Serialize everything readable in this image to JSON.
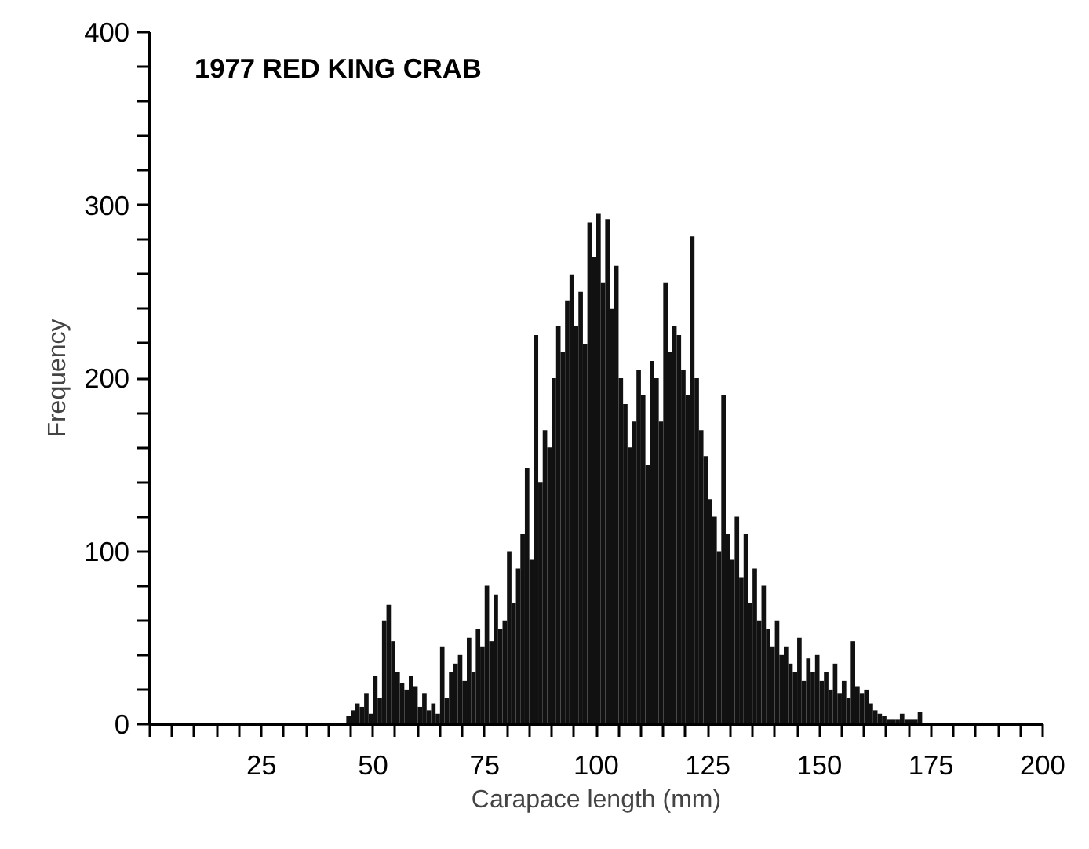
{
  "chart_data": {
    "type": "histogram",
    "title": "1977 RED KING CRAB",
    "xlabel": "Carapace length (mm)",
    "ylabel": "Frequency",
    "bins": [
      44,
      45,
      46,
      47,
      48,
      49,
      50,
      51,
      52,
      53,
      54,
      55,
      56,
      57,
      58,
      59,
      60,
      61,
      62,
      63,
      64,
      65,
      66,
      67,
      68,
      69,
      70,
      71,
      72,
      73,
      74,
      75,
      76,
      77,
      78,
      79,
      80,
      81,
      82,
      83,
      84,
      85,
      86,
      87,
      88,
      89,
      90,
      91,
      92,
      93,
      94,
      95,
      96,
      97,
      98,
      99,
      100,
      101,
      102,
      103,
      104,
      105,
      106,
      107,
      108,
      109,
      110,
      111,
      112,
      113,
      114,
      115,
      116,
      117,
      118,
      119,
      120,
      121,
      122,
      123,
      124,
      125,
      126,
      127,
      128,
      129,
      130,
      131,
      132,
      133,
      134,
      135,
      136,
      137,
      138,
      139,
      140,
      141,
      142,
      143,
      144,
      145,
      146,
      147,
      148,
      149,
      150,
      151,
      152,
      153,
      154,
      155,
      156,
      157,
      158,
      159,
      160,
      161,
      162,
      163,
      164,
      165,
      166,
      167,
      168,
      169,
      170,
      171,
      172,
      173
    ],
    "values": [
      5,
      8,
      12,
      10,
      18,
      6,
      28,
      15,
      60,
      69,
      48,
      30,
      24,
      20,
      28,
      22,
      10,
      18,
      8,
      12,
      6,
      45,
      15,
      30,
      35,
      40,
      25,
      50,
      30,
      55,
      45,
      80,
      48,
      75,
      55,
      60,
      100,
      70,
      90,
      110,
      148,
      95,
      225,
      140,
      170,
      160,
      200,
      230,
      215,
      245,
      260,
      230,
      250,
      220,
      290,
      270,
      295,
      255,
      292,
      240,
      265,
      200,
      185,
      160,
      175,
      205,
      190,
      150,
      210,
      200,
      175,
      255,
      215,
      230,
      225,
      205,
      190,
      282,
      200,
      170,
      155,
      130,
      120,
      100,
      190,
      110,
      95,
      120,
      85,
      110,
      70,
      90,
      60,
      80,
      55,
      45,
      60,
      40,
      45,
      35,
      30,
      50,
      25,
      38,
      30,
      40,
      25,
      30,
      20,
      35,
      18,
      25,
      15,
      48,
      22,
      18,
      20,
      12,
      8,
      6,
      5,
      3,
      3,
      3,
      6,
      3,
      3,
      3,
      7
    ],
    "color": "#111111",
    "xlim": [
      0,
      200
    ],
    "ylim": [
      0,
      400
    ],
    "xticks": [
      {
        "value": 0,
        "label": null
      },
      {
        "value": 5,
        "label": null
      },
      {
        "value": 10,
        "label": null
      },
      {
        "value": 15,
        "label": null
      },
      {
        "value": 20,
        "label": null
      },
      25,
      {
        "value": 30,
        "label": null
      },
      {
        "value": 35,
        "label": null
      },
      {
        "value": 40,
        "label": null
      },
      {
        "value": 45,
        "label": null
      },
      50,
      {
        "value": 55,
        "label": null
      },
      {
        "value": 60,
        "label": null
      },
      {
        "value": 65,
        "label": null
      },
      {
        "value": 70,
        "label": null
      },
      75,
      {
        "value": 80,
        "label": null
      },
      {
        "value": 85,
        "label": null
      },
      {
        "value": 90,
        "label": null
      },
      {
        "value": 95,
        "label": null
      },
      100,
      {
        "value": 105,
        "label": null
      },
      {
        "value": 110,
        "label": null
      },
      {
        "value": 115,
        "label": null
      },
      {
        "value": 120,
        "label": null
      },
      125,
      {
        "value": 130,
        "label": null
      },
      {
        "value": 135,
        "label": null
      },
      {
        "value": 140,
        "label": null
      },
      {
        "value": 145,
        "label": null
      },
      150,
      {
        "value": 155,
        "label": null
      },
      {
        "value": 160,
        "label": null
      },
      {
        "value": 165,
        "label": null
      },
      {
        "value": 170,
        "label": null
      },
      175,
      {
        "value": 180,
        "label": null
      },
      {
        "value": 185,
        "label": null
      },
      {
        "value": 190,
        "label": null
      },
      {
        "value": 195,
        "label": null
      },
      200
    ],
    "yticks": [
      0,
      {
        "value": 20,
        "label": null
      },
      {
        "value": 40,
        "label": null
      },
      {
        "value": 60,
        "label": null
      },
      {
        "value": 80,
        "label": null
      },
      100,
      {
        "value": 120,
        "label": null
      },
      {
        "value": 140,
        "label": null
      },
      {
        "value": 160,
        "label": null
      },
      {
        "value": 180,
        "label": null
      },
      200,
      {
        "value": 220,
        "label": null
      },
      {
        "value": 240,
        "label": null
      },
      {
        "value": 260,
        "label": null
      },
      {
        "value": 280,
        "label": null
      },
      300,
      {
        "value": 320,
        "label": null
      },
      {
        "value": 340,
        "label": null
      },
      {
        "value": 360,
        "label": null
      },
      {
        "value": 380,
        "label": null
      },
      400
    ],
    "grid": false
  }
}
